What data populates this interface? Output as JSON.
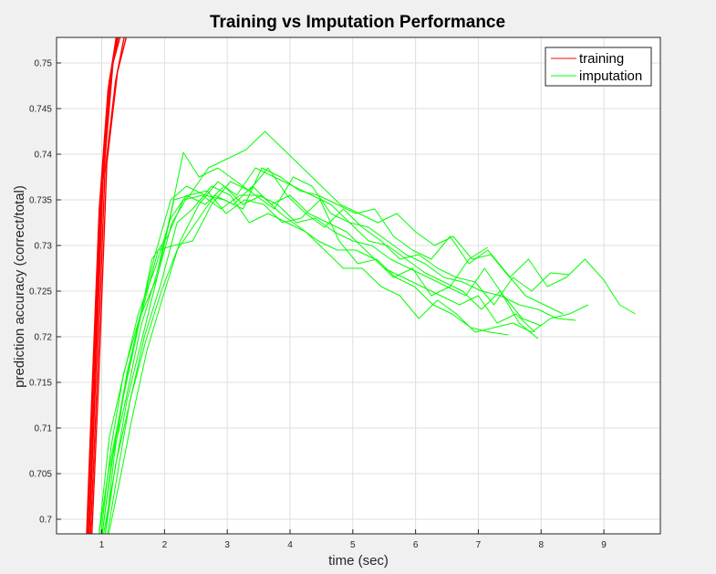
{
  "chart_data": {
    "type": "line",
    "title": "Training vs Imputation Performance",
    "xlabel": "time (sec)",
    "ylabel": "prediction accuracy (correct/total)",
    "xlim": [
      0.28,
      9.9
    ],
    "ylim": [
      0.6984,
      0.7528
    ],
    "xticks": [
      1,
      2,
      3,
      4,
      5,
      6,
      7,
      8,
      9
    ],
    "yticks": [
      0.7,
      0.705,
      0.71,
      0.715,
      0.72,
      0.725,
      0.73,
      0.735,
      0.74,
      0.745,
      0.75
    ],
    "ytick_labels": [
      "0.7",
      "0.705",
      "0.71",
      "0.715",
      "0.72",
      "0.725",
      "0.73",
      "0.735",
      "0.74",
      "0.745",
      "0.75"
    ],
    "grid": true,
    "legend": {
      "position": "top-right",
      "entries": [
        "training",
        "imputation"
      ]
    },
    "colors": {
      "training": "#ff0000",
      "imputation": "#00ff00"
    },
    "series": [
      {
        "group": "training",
        "x": [
          0.75,
          0.85,
          0.98,
          1.12,
          1.3
        ],
        "y": [
          0.695,
          0.712,
          0.735,
          0.748,
          0.755
        ]
      },
      {
        "group": "training",
        "x": [
          0.77,
          0.88,
          1.0,
          1.15,
          1.33
        ],
        "y": [
          0.695,
          0.714,
          0.736,
          0.749,
          0.755
        ]
      },
      {
        "group": "training",
        "x": [
          0.78,
          0.9,
          1.02,
          1.18,
          1.38
        ],
        "y": [
          0.695,
          0.715,
          0.737,
          0.75,
          0.755
        ]
      },
      {
        "group": "training",
        "x": [
          0.8,
          0.92,
          1.05,
          1.22,
          1.42
        ],
        "y": [
          0.695,
          0.714,
          0.738,
          0.748,
          0.755
        ]
      },
      {
        "group": "training",
        "x": [
          0.82,
          0.95,
          1.08,
          1.25,
          1.47
        ],
        "y": [
          0.695,
          0.715,
          0.739,
          0.749,
          0.755
        ]
      },
      {
        "group": "training",
        "x": [
          0.74,
          0.84,
          0.96,
          1.1,
          1.28
        ],
        "y": [
          0.695,
          0.713,
          0.734,
          0.747,
          0.755
        ]
      },
      {
        "group": "imputation",
        "x": [
          0.95,
          1.1,
          1.3,
          1.55,
          1.8,
          2.05,
          2.3,
          2.6,
          2.9,
          3.2,
          3.5,
          3.8,
          4.1,
          4.4,
          4.7,
          5.0,
          5.3,
          5.6,
          5.9,
          6.2,
          6.5,
          6.8,
          7.1,
          7.4,
          7.7,
          8.0
        ],
        "y": [
          0.698,
          0.705,
          0.712,
          0.72,
          0.7285,
          0.731,
          0.735,
          0.7355,
          0.734,
          0.7355,
          0.7355,
          0.7345,
          0.7325,
          0.733,
          0.7315,
          0.7305,
          0.73,
          0.7285,
          0.7275,
          0.7265,
          0.7255,
          0.7245,
          0.7275,
          0.7245,
          0.722,
          0.7212
        ]
      },
      {
        "group": "imputation",
        "x": [
          1.0,
          1.15,
          1.35,
          1.6,
          1.85,
          2.1,
          2.35,
          2.65,
          2.95,
          3.25,
          3.55,
          3.85,
          4.15,
          4.45,
          4.75,
          5.05,
          5.35,
          5.65,
          5.95,
          6.25,
          6.55,
          6.85,
          7.15,
          7.45,
          7.75,
          8.05,
          8.35
        ],
        "y": [
          0.698,
          0.706,
          0.714,
          0.722,
          0.729,
          0.735,
          0.7365,
          0.7355,
          0.735,
          0.734,
          0.7385,
          0.7375,
          0.736,
          0.7355,
          0.7345,
          0.7335,
          0.734,
          0.731,
          0.7295,
          0.7285,
          0.731,
          0.728,
          0.7295,
          0.727,
          0.7245,
          0.7235,
          0.7225
        ]
      },
      {
        "group": "imputation",
        "x": [
          1.05,
          1.2,
          1.4,
          1.65,
          1.9,
          2.15,
          2.45,
          2.75,
          3.05,
          3.35,
          3.65,
          3.95,
          4.25,
          4.55,
          4.85,
          5.15,
          5.45,
          5.75,
          6.05,
          6.35,
          6.65,
          6.95,
          7.25,
          7.55,
          7.85,
          8.15,
          8.45
        ],
        "y": [
          0.698,
          0.707,
          0.716,
          0.723,
          0.7295,
          0.73,
          0.7305,
          0.7345,
          0.737,
          0.736,
          0.7385,
          0.7355,
          0.7335,
          0.732,
          0.734,
          0.732,
          0.7305,
          0.7285,
          0.729,
          0.7275,
          0.7265,
          0.726,
          0.7235,
          0.7265,
          0.725,
          0.727,
          0.7268
        ]
      },
      {
        "group": "imputation",
        "x": [
          1.0,
          1.18,
          1.38,
          1.62,
          1.88,
          2.1,
          2.3,
          2.55,
          2.85,
          3.15,
          3.45,
          3.75,
          4.05,
          4.35,
          4.65,
          4.95,
          5.25,
          5.55,
          5.85,
          6.15,
          6.45,
          6.75,
          7.05,
          7.35,
          7.65,
          7.95
        ],
        "y": [
          0.698,
          0.707,
          0.713,
          0.721,
          0.727,
          0.7335,
          0.7402,
          0.7375,
          0.7385,
          0.737,
          0.7355,
          0.734,
          0.7375,
          0.7365,
          0.7335,
          0.7325,
          0.7305,
          0.73,
          0.7285,
          0.727,
          0.726,
          0.725,
          0.723,
          0.725,
          0.7215,
          0.7198
        ]
      },
      {
        "group": "imputation",
        "x": [
          1.02,
          1.2,
          1.4,
          1.65,
          1.9,
          2.15,
          2.4,
          2.7,
          3.0,
          3.3,
          3.6,
          3.9,
          4.2,
          4.5,
          4.8,
          5.1,
          5.4,
          5.7,
          6.0,
          6.3,
          6.6,
          6.9,
          7.2,
          7.5,
          7.8,
          8.1,
          8.4,
          8.7,
          9.0,
          9.25,
          9.5
        ],
        "y": [
          0.698,
          0.705,
          0.713,
          0.72,
          0.727,
          0.735,
          0.7355,
          0.7385,
          0.7395,
          0.7405,
          0.7425,
          0.7405,
          0.7385,
          0.7365,
          0.7345,
          0.7335,
          0.7325,
          0.7335,
          0.7315,
          0.73,
          0.731,
          0.7285,
          0.729,
          0.7265,
          0.7285,
          0.7255,
          0.7265,
          0.7285,
          0.7262,
          0.7235,
          0.7225
        ]
      },
      {
        "group": "imputation",
        "x": [
          1.05,
          1.22,
          1.42,
          1.68,
          1.95,
          2.2,
          2.45,
          2.75,
          3.05,
          3.35,
          3.65,
          3.95,
          4.25,
          4.55,
          4.85,
          5.15,
          5.45,
          5.75,
          6.05,
          6.35,
          6.65,
          6.95,
          7.25,
          7.55,
          7.85,
          8.15,
          8.45,
          8.75
        ],
        "y": [
          0.698,
          0.706,
          0.712,
          0.72,
          0.726,
          0.7325,
          0.734,
          0.7365,
          0.7355,
          0.7325,
          0.7335,
          0.7325,
          0.7315,
          0.7295,
          0.7275,
          0.7275,
          0.7255,
          0.7245,
          0.722,
          0.724,
          0.7225,
          0.7205,
          0.721,
          0.7215,
          0.7205,
          0.722,
          0.7225,
          0.7235
        ]
      },
      {
        "group": "imputation",
        "x": [
          0.98,
          1.15,
          1.35,
          1.6,
          1.88,
          2.12,
          2.38,
          2.68,
          2.98,
          3.28,
          3.58,
          3.88,
          4.18,
          4.48,
          4.78,
          5.08,
          5.38,
          5.68,
          5.98,
          6.28,
          6.58,
          6.88,
          7.18,
          7.48
        ],
        "y": [
          0.698,
          0.708,
          0.716,
          0.722,
          0.7265,
          0.7325,
          0.7355,
          0.736,
          0.7335,
          0.735,
          0.7345,
          0.7325,
          0.733,
          0.735,
          0.7305,
          0.728,
          0.7285,
          0.7265,
          0.7255,
          0.7235,
          0.7225,
          0.721,
          0.7205,
          0.7202
        ]
      },
      {
        "group": "imputation",
        "x": [
          1.08,
          1.25,
          1.45,
          1.7,
          1.95,
          2.2,
          2.5,
          2.8,
          3.1,
          3.4,
          3.7,
          4.0,
          4.3,
          4.6,
          4.9,
          5.2,
          5.5,
          5.8,
          6.1,
          6.4,
          6.7,
          7.0,
          7.3,
          7.6,
          7.9
        ],
        "y": [
          0.698,
          0.705,
          0.713,
          0.7195,
          0.725,
          0.7295,
          0.7325,
          0.7355,
          0.7345,
          0.7365,
          0.7345,
          0.7355,
          0.7335,
          0.7325,
          0.7315,
          0.7295,
          0.7275,
          0.7265,
          0.7255,
          0.7245,
          0.7235,
          0.7245,
          0.7215,
          0.7225,
          0.7205
        ]
      },
      {
        "group": "imputation",
        "x": [
          0.95,
          1.12,
          1.32,
          1.58,
          1.85,
          2.1,
          2.35,
          2.65,
          2.95,
          3.25,
          3.55,
          3.85,
          4.15,
          4.45,
          4.75,
          5.05,
          5.35,
          5.65,
          5.95,
          6.25,
          6.55,
          6.85,
          7.15
        ],
        "y": [
          0.698,
          0.709,
          0.715,
          0.7225,
          0.7275,
          0.733,
          0.7355,
          0.7345,
          0.7365,
          0.7345,
          0.7355,
          0.7335,
          0.732,
          0.7305,
          0.7295,
          0.7295,
          0.7285,
          0.7265,
          0.7275,
          0.7245,
          0.7255,
          0.7285,
          0.7298
        ]
      },
      {
        "group": "imputation",
        "x": [
          1.1,
          1.28,
          1.48,
          1.72,
          1.98,
          2.25,
          2.55,
          2.85,
          3.15,
          3.45,
          3.75,
          4.05,
          4.35,
          4.65,
          4.95,
          5.25,
          5.55,
          5.85,
          6.15,
          6.45,
          6.75,
          7.05,
          7.35,
          7.65,
          7.95,
          8.25,
          8.55
        ],
        "y": [
          0.698,
          0.704,
          0.711,
          0.7185,
          0.7245,
          0.7305,
          0.7345,
          0.737,
          0.7355,
          0.7385,
          0.7375,
          0.7365,
          0.7355,
          0.7345,
          0.7325,
          0.732,
          0.7305,
          0.729,
          0.728,
          0.7265,
          0.726,
          0.725,
          0.7245,
          0.7235,
          0.723,
          0.722,
          0.7218
        ]
      }
    ]
  }
}
